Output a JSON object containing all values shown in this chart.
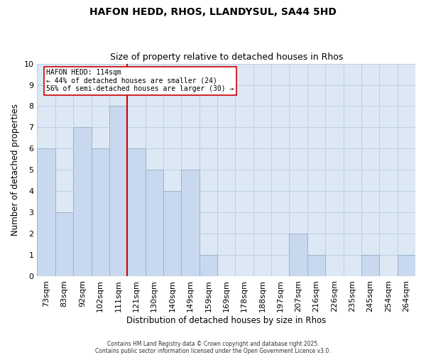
{
  "title1": "HAFON HEDD, RHOS, LLANDYSUL, SA44 5HD",
  "title2": "Size of property relative to detached houses in Rhos",
  "xlabel": "Distribution of detached houses by size in Rhos",
  "ylabel": "Number of detached properties",
  "bin_labels": [
    "73sqm",
    "83sqm",
    "92sqm",
    "102sqm",
    "111sqm",
    "121sqm",
    "130sqm",
    "140sqm",
    "149sqm",
    "159sqm",
    "169sqm",
    "178sqm",
    "188sqm",
    "197sqm",
    "207sqm",
    "216sqm",
    "226sqm",
    "235sqm",
    "245sqm",
    "254sqm",
    "264sqm"
  ],
  "counts": [
    6,
    3,
    7,
    6,
    8,
    6,
    5,
    4,
    5,
    1,
    0,
    0,
    0,
    0,
    2,
    1,
    0,
    0,
    1,
    0,
    1
  ],
  "bar_color": "#c8d8ee",
  "bar_edgecolor": "#9ab4cc",
  "vline_color": "#cc0000",
  "vline_bin_index": 4.5,
  "annotation_title": "HAFON HEDD: 114sqm",
  "annotation_line1": "← 44% of detached houses are smaller (24)",
  "annotation_line2": "56% of semi-detached houses are larger (30) →",
  "annotation_box_edgecolor": "#cc0000",
  "ylim": [
    0,
    10
  ],
  "yticks": [
    0,
    1,
    2,
    3,
    4,
    5,
    6,
    7,
    8,
    9,
    10
  ],
  "grid_color": "#b8cce0",
  "background_color": "#dce8f4",
  "footnote1": "Contains HM Land Registry data © Crown copyright and database right 2025.",
  "footnote2": "Contains public sector information licensed under the Open Government Licence v3.0."
}
